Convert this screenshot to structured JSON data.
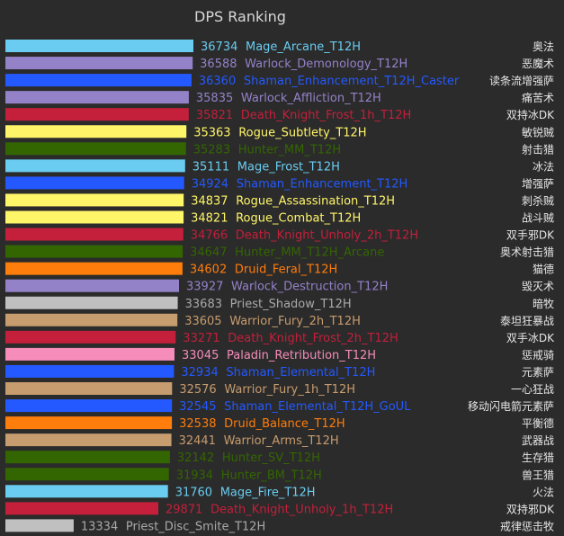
{
  "chart_data": {
    "type": "bar",
    "orientation": "horizontal",
    "title": "DPS Ranking",
    "xlabel": "",
    "ylabel": "",
    "grid": false,
    "legend": "none",
    "title_color": "#d8d8d8",
    "cn_color": "#e6e6e6",
    "xlim": [
      0,
      36734
    ],
    "bars": [
      {
        "value": 36734,
        "label": "Mage_Arcane_T12H",
        "cn": "奥法",
        "color": "#69ccf0",
        "text_color": "#69ccf0"
      },
      {
        "value": 36588,
        "label": "Warlock_Demonology_T12H",
        "cn": "恶魔术",
        "color": "#9482c9",
        "text_color": "#9482c9"
      },
      {
        "value": 36360,
        "label": "Shaman_Enhancement_T12H_Caster",
        "cn": "读条流增强萨",
        "color": "#2459ff",
        "text_color": "#2459ff"
      },
      {
        "value": 35835,
        "label": "Warlock_Affliction_T12H",
        "cn": "痛苦术",
        "color": "#9482c9",
        "text_color": "#9482c9"
      },
      {
        "value": 35821,
        "label": "Death_Knight_Frost_1h_T12H",
        "cn": "双持冰DK",
        "color": "#c41f3b",
        "text_color": "#c41f3b"
      },
      {
        "value": 35363,
        "label": "Rogue_Subtlety_T12H",
        "cn": "敏锐贼",
        "color": "#fff569",
        "text_color": "#fff569"
      },
      {
        "value": 35283,
        "label": "Hunter_MM_T12H",
        "cn": "射击猎",
        "color": "#336600",
        "text_color": "#336600"
      },
      {
        "value": 35111,
        "label": "Mage_Frost_T12H",
        "cn": "冰法",
        "color": "#69ccf0",
        "text_color": "#69ccf0"
      },
      {
        "value": 34924,
        "label": "Shaman_Enhancement_T12H",
        "cn": "增强萨",
        "color": "#2459ff",
        "text_color": "#2459ff"
      },
      {
        "value": 34837,
        "label": "Rogue_Assassination_T12H",
        "cn": "刺杀贼",
        "color": "#fff569",
        "text_color": "#fff569"
      },
      {
        "value": 34821,
        "label": "Rogue_Combat_T12H",
        "cn": "战斗贼",
        "color": "#fff569",
        "text_color": "#fff569"
      },
      {
        "value": 34766,
        "label": "Death_Knight_Unholy_2h_T12H",
        "cn": "双手邪DK",
        "color": "#c41f3b",
        "text_color": "#c41f3b"
      },
      {
        "value": 34647,
        "label": "Hunter_MM_T12H_Arcane",
        "cn": "奥术射击猎",
        "color": "#336600",
        "text_color": "#336600"
      },
      {
        "value": 34602,
        "label": "Druid_Feral_T12H",
        "cn": "猫德",
        "color": "#ff7d0a",
        "text_color": "#ff7d0a"
      },
      {
        "value": 33927,
        "label": "Warlock_Destruction_T12H",
        "cn": "毁灭术",
        "color": "#9482c9",
        "text_color": "#9482c9"
      },
      {
        "value": 33683,
        "label": "Priest_Shadow_T12H",
        "cn": "暗牧",
        "color": "#c0c0c0",
        "text_color": "#a9a9a9"
      },
      {
        "value": 33605,
        "label": "Warrior_Fury_2h_T12H",
        "cn": "泰坦狂暴战",
        "color": "#c79c6e",
        "text_color": "#c79c6e"
      },
      {
        "value": 33271,
        "label": "Death_Knight_Frost_2h_T12H",
        "cn": "双手冰DK",
        "color": "#c41f3b",
        "text_color": "#c41f3b"
      },
      {
        "value": 33045,
        "label": "Paladin_Retribution_T12H",
        "cn": "惩戒骑",
        "color": "#f58cba",
        "text_color": "#f58cba"
      },
      {
        "value": 32934,
        "label": "Shaman_Elemental_T12H",
        "cn": "元素萨",
        "color": "#2459ff",
        "text_color": "#2459ff"
      },
      {
        "value": 32576,
        "label": "Warrior_Fury_1h_T12H",
        "cn": "一心狂战",
        "color": "#c79c6e",
        "text_color": "#c79c6e"
      },
      {
        "value": 32545,
        "label": "Shaman_Elemental_T12H_GoUL",
        "cn": "移动闪电箭元素萨",
        "color": "#2459ff",
        "text_color": "#2459ff"
      },
      {
        "value": 32538,
        "label": "Druid_Balance_T12H",
        "cn": "平衡德",
        "color": "#ff7d0a",
        "text_color": "#ff7d0a"
      },
      {
        "value": 32441,
        "label": "Warrior_Arms_T12H",
        "cn": "武器战",
        "color": "#c79c6e",
        "text_color": "#c79c6e"
      },
      {
        "value": 32142,
        "label": "Hunter_SV_T12H",
        "cn": "生存猎",
        "color": "#336600",
        "text_color": "#336600"
      },
      {
        "value": 31934,
        "label": "Hunter_BM_T12H",
        "cn": "兽王猎",
        "color": "#336600",
        "text_color": "#336600"
      },
      {
        "value": 31760,
        "label": "Mage_Fire_T12H",
        "cn": "火法",
        "color": "#69ccf0",
        "text_color": "#69ccf0"
      },
      {
        "value": 29871,
        "label": "Death_Knight_Unholy_1h_T12H",
        "cn": "双持邪DK",
        "color": "#c41f3b",
        "text_color": "#c41f3b"
      },
      {
        "value": 13334,
        "label": "Priest_Disc_Smite_T12H",
        "cn": "戒律惩击牧",
        "color": "#c0c0c0",
        "text_color": "#a9a9a9"
      }
    ]
  }
}
